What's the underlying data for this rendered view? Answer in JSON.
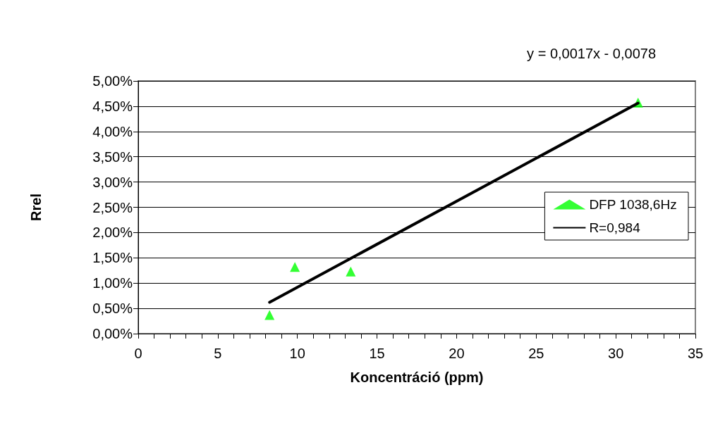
{
  "chart_data": {
    "type": "scatter",
    "xlabel": "Koncentráció (ppm)",
    "ylabel": "Rrel",
    "annotations": [
      "y = 0,0017x - 0,0078"
    ],
    "series": [
      {
        "name": "DFP 1038,6Hz",
        "color": "#00ff00",
        "marker": "triangle",
        "x": [
          8.25,
          9.84,
          13.35,
          31.4
        ],
        "values": [
          0.37,
          1.32,
          1.23,
          4.57
        ]
      },
      {
        "name": "R=0,984",
        "type": "line",
        "color": "#000000",
        "marker": "none",
        "line_style": "solid",
        "x": [
          8.25,
          31.4
        ],
        "values": [
          0.62,
          4.56
        ]
      }
    ],
    "xlim": [
      0,
      35
    ],
    "xticks": [
      0,
      {
        "value": 1,
        "label": null
      },
      {
        "value": 2,
        "label": null
      },
      {
        "value": 3,
        "label": null
      },
      {
        "value": 4,
        "label": null
      },
      5,
      {
        "value": 6,
        "label": null
      },
      {
        "value": 7,
        "label": null
      },
      {
        "value": 8,
        "label": null
      },
      {
        "value": 9,
        "label": null
      },
      10,
      {
        "value": 11,
        "label": null
      },
      {
        "value": 12,
        "label": null
      },
      {
        "value": 13,
        "label": null
      },
      {
        "value": 14,
        "label": null
      },
      15,
      {
        "value": 16,
        "label": null
      },
      {
        "value": 17,
        "label": null
      },
      {
        "value": 18,
        "label": null
      },
      {
        "value": 19,
        "label": null
      },
      20,
      {
        "value": 21,
        "label": null
      },
      {
        "value": 22,
        "label": null
      },
      {
        "value": 23,
        "label": null
      },
      {
        "value": 24,
        "label": null
      },
      25,
      {
        "value": 26,
        "label": null
      },
      {
        "value": 27,
        "label": null
      },
      {
        "value": 28,
        "label": null
      },
      {
        "value": 29,
        "label": null
      },
      30,
      {
        "value": 31,
        "label": null
      },
      {
        "value": 32,
        "label": null
      },
      {
        "value": 33,
        "label": null
      },
      {
        "value": 34,
        "label": null
      },
      35
    ],
    "ylim": [
      0,
      5
    ],
    "yticks": [
      {
        "value": 0,
        "label": "0,00%"
      },
      {
        "value": 0.5,
        "label": "0,50%"
      },
      {
        "value": 1,
        "label": "1,00%"
      },
      {
        "value": 1.5,
        "label": "1,50%"
      },
      {
        "value": 2,
        "label": "2,00%"
      },
      {
        "value": 2.5,
        "label": "2,50%"
      },
      {
        "value": 3,
        "label": "3,00%"
      },
      {
        "value": 3.5,
        "label": "3,50%"
      },
      {
        "value": 4,
        "label": "4,00%"
      },
      {
        "value": 4.5,
        "label": "4,50%"
      },
      {
        "value": 5,
        "label": "5,00%"
      }
    ],
    "grid": "y",
    "legend": "right"
  }
}
